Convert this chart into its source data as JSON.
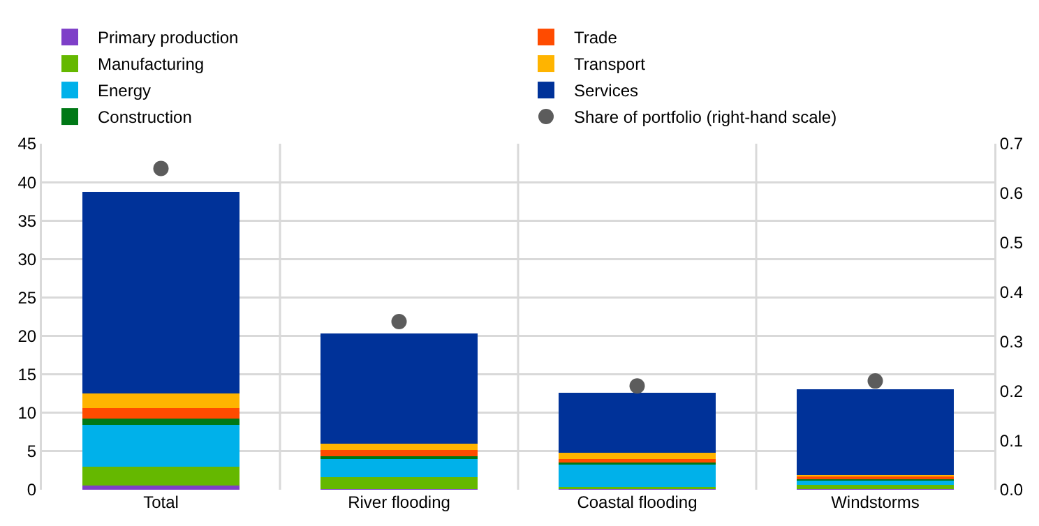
{
  "chart_data": {
    "type": "bar",
    "stacked": true,
    "categories": [
      "Total",
      "River flooding",
      "Coastal flooding",
      "Windstorms"
    ],
    "series": [
      {
        "name": "Primary production",
        "color": "#7e3fc8",
        "values": [
          0.5,
          0.1,
          0.1,
          0.05
        ]
      },
      {
        "name": "Manufacturing",
        "color": "#65b800",
        "values": [
          2.45,
          1.55,
          0.3,
          0.6
        ]
      },
      {
        "name": "Energy",
        "color": "#00b1ea",
        "values": [
          5.5,
          2.35,
          2.9,
          0.55
        ]
      },
      {
        "name": "Construction",
        "color": "#007816",
        "values": [
          0.85,
          0.35,
          0.25,
          0.2
        ]
      },
      {
        "name": "Trade",
        "color": "#ff4b00",
        "values": [
          1.3,
          0.85,
          0.4,
          0.3
        ]
      },
      {
        "name": "Transport",
        "color": "#ffb400",
        "values": [
          1.9,
          0.75,
          0.85,
          0.25
        ]
      },
      {
        "name": "Services",
        "color": "#003299",
        "values": [
          26.2,
          14.35,
          7.85,
          11.15
        ]
      },
      {
        "name": "Share of portfolio (right-hand scale)",
        "type": "scatter",
        "axis": "y2",
        "color": "#5c5c5c",
        "marker": "circle",
        "values": [
          0.65,
          0.34,
          0.21,
          0.22
        ]
      }
    ],
    "ylim": [
      0,
      45
    ],
    "yticks": [
      0,
      5,
      10,
      15,
      20,
      25,
      30,
      35,
      40,
      45
    ],
    "y2lim": [
      0,
      0.7
    ],
    "y2ticks": [
      {
        "value": 0,
        "label": "0.0"
      },
      0.1,
      0.2,
      0.3,
      0.4,
      0.5,
      0.6,
      0.7
    ],
    "grid": true,
    "legend": "top"
  }
}
